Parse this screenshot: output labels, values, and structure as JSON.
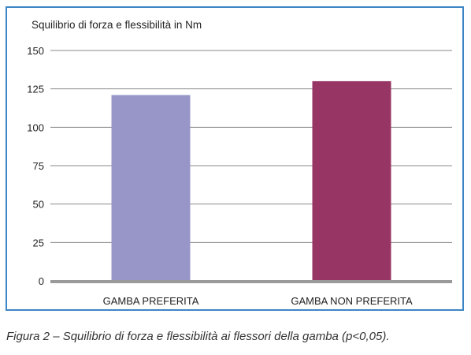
{
  "chart_data": {
    "type": "bar",
    "title": "Squilibrio di forza e flessibilità in Nm",
    "xlabel": "",
    "ylabel": "",
    "categories": [
      "GAMBA PREFERITA",
      "GAMBA NON PREFERITA"
    ],
    "values": [
      121,
      130
    ],
    "colors": [
      "#9896c8",
      "#973565"
    ],
    "ylim": [
      0,
      150
    ],
    "yticks": [
      0,
      25,
      50,
      75,
      100,
      125,
      150
    ],
    "grid": true,
    "legend": "none"
  },
  "caption": "Figura 2 – Squilibrio di forza e flessibilità ai flessori della gamba (p<0,05).",
  "style": {
    "frame_color": "#3d86c6",
    "grid_color": "#8a8a8a",
    "baseline_color": "#9a9a9a"
  }
}
